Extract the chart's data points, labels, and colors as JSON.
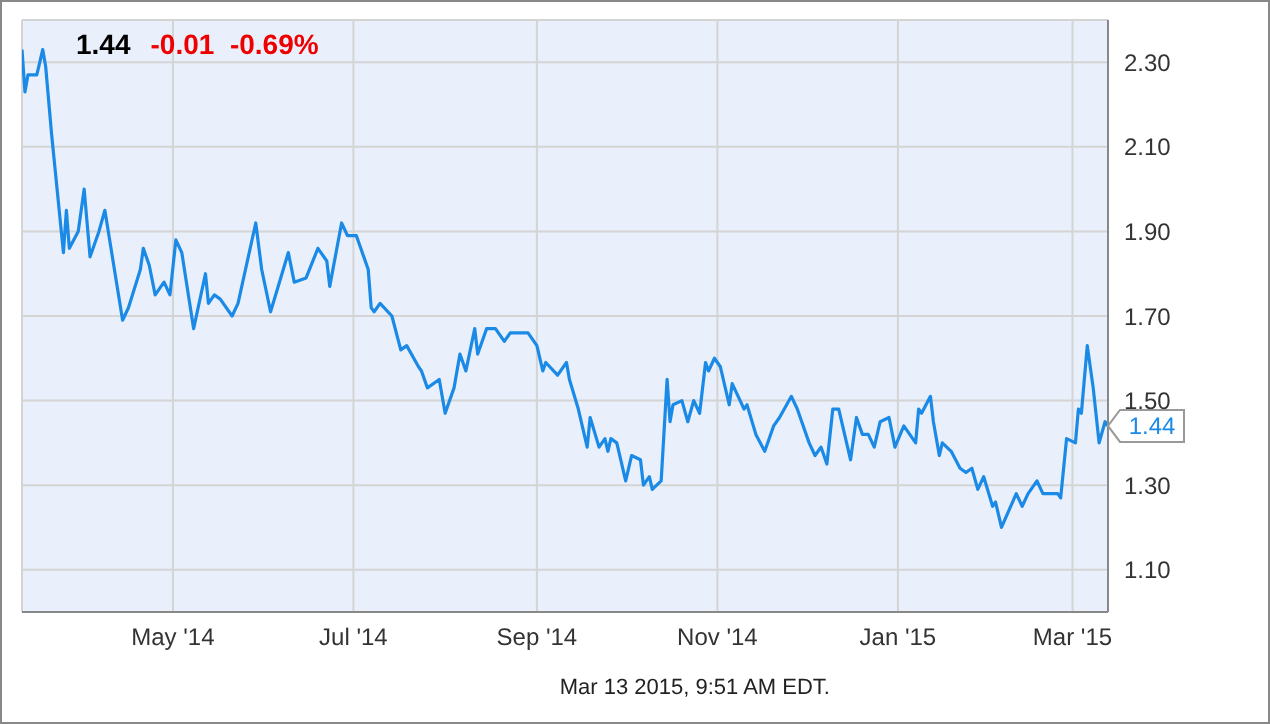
{
  "chart_data": {
    "type": "line",
    "title": "1.44",
    "subtitle": "-0.01  -0.69%",
    "x": [
      "2014-03-11",
      "2014-03-12",
      "2014-03-13",
      "2014-03-16",
      "2014-03-17",
      "2014-03-18",
      "2014-03-19",
      "2014-03-21",
      "2014-03-25",
      "2014-03-26",
      "2014-03-27",
      "2014-03-30",
      "2014-04-01",
      "2014-04-03",
      "2014-04-06",
      "2014-04-08",
      "2014-04-14",
      "2014-04-16",
      "2014-04-20",
      "2014-04-21",
      "2014-04-23",
      "2014-04-25",
      "2014-04-28",
      "2014-04-30",
      "2014-05-02",
      "2014-05-04",
      "2014-05-08",
      "2014-05-12",
      "2014-05-13",
      "2014-05-15",
      "2014-05-17",
      "2014-05-21",
      "2014-05-23",
      "2014-05-29",
      "2014-05-31",
      "2014-06-03",
      "2014-06-06",
      "2014-06-09",
      "2014-06-11",
      "2014-06-15",
      "2014-06-19",
      "2014-06-22",
      "2014-06-23",
      "2014-06-27",
      "2014-06-29",
      "2014-07-02",
      "2014-07-06",
      "2014-07-07",
      "2014-07-08",
      "2014-07-10",
      "2014-07-14",
      "2014-07-17",
      "2014-07-19",
      "2014-07-23",
      "2014-07-24",
      "2014-07-26",
      "2014-07-30",
      "2014-08-01",
      "2014-08-04",
      "2014-08-06",
      "2014-08-08",
      "2014-08-11",
      "2014-08-12",
      "2014-08-15",
      "2014-08-18",
      "2014-08-21",
      "2014-08-23",
      "2014-08-29",
      "2014-09-01",
      "2014-09-03",
      "2014-09-04",
      "2014-09-08",
      "2014-09-11",
      "2014-09-12",
      "2014-09-15",
      "2014-09-18",
      "2014-09-19",
      "2014-09-22",
      "2014-09-24",
      "2014-09-25",
      "2014-09-26",
      "2014-09-28",
      "2014-10-01",
      "2014-10-03",
      "2014-10-06",
      "2014-10-07",
      "2014-10-09",
      "2014-10-10",
      "2014-10-13",
      "2014-10-15",
      "2014-10-16",
      "2014-10-17",
      "2014-10-20",
      "2014-10-22",
      "2014-10-24",
      "2014-10-26",
      "2014-10-28",
      "2014-10-29",
      "2014-10-31",
      "2014-11-02",
      "2014-11-05",
      "2014-11-06",
      "2014-11-10",
      "2014-11-11",
      "2014-11-14",
      "2014-11-17",
      "2014-11-20",
      "2014-11-22",
      "2014-11-26",
      "2014-11-28",
      "2014-12-02",
      "2014-12-04",
      "2014-12-06",
      "2014-12-08",
      "2014-12-10",
      "2014-12-12",
      "2014-12-16",
      "2014-12-18",
      "2014-12-20",
      "2014-12-22",
      "2014-12-24",
      "2014-12-26",
      "2014-12-29",
      "2014-12-31",
      "2015-01-03",
      "2015-01-07",
      "2015-01-08",
      "2015-01-09",
      "2015-01-12",
      "2015-01-13",
      "2015-01-15",
      "2015-01-16",
      "2015-01-19",
      "2015-01-22",
      "2015-01-24",
      "2015-01-26",
      "2015-01-28",
      "2015-01-30",
      "2015-02-02",
      "2015-02-03",
      "2015-02-05",
      "2015-02-10",
      "2015-02-12",
      "2015-02-14",
      "2015-02-17",
      "2015-02-19",
      "2015-02-24",
      "2015-02-25",
      "2015-02-27",
      "2015-03-02",
      "2015-03-03",
      "2015-03-04",
      "2015-03-06",
      "2015-03-08",
      "2015-03-10",
      "2015-03-12",
      "2015-03-13"
    ],
    "series": [
      {
        "color": "#1a8ae6",
        "values": [
          2.33,
          2.23,
          2.27,
          2.27,
          2.3,
          2.33,
          2.29,
          2.13,
          1.85,
          1.95,
          1.86,
          1.9,
          2.0,
          1.84,
          1.9,
          1.95,
          1.69,
          1.72,
          1.81,
          1.86,
          1.82,
          1.75,
          1.78,
          1.75,
          1.88,
          1.85,
          1.67,
          1.8,
          1.73,
          1.75,
          1.74,
          1.7,
          1.73,
          1.92,
          1.81,
          1.71,
          1.78,
          1.85,
          1.78,
          1.79,
          1.86,
          1.83,
          1.77,
          1.92,
          1.89,
          1.89,
          1.81,
          1.72,
          1.71,
          1.73,
          1.7,
          1.62,
          1.63,
          1.58,
          1.57,
          1.53,
          1.55,
          1.47,
          1.53,
          1.61,
          1.57,
          1.67,
          1.61,
          1.67,
          1.67,
          1.64,
          1.66,
          1.66,
          1.63,
          1.57,
          1.59,
          1.56,
          1.59,
          1.55,
          1.48,
          1.39,
          1.46,
          1.39,
          1.41,
          1.38,
          1.41,
          1.4,
          1.31,
          1.37,
          1.36,
          1.3,
          1.32,
          1.29,
          1.31,
          1.55,
          1.45,
          1.49,
          1.5,
          1.45,
          1.5,
          1.47,
          1.59,
          1.57,
          1.6,
          1.58,
          1.49,
          1.54,
          1.48,
          1.49,
          1.42,
          1.38,
          1.44,
          1.46,
          1.51,
          1.48,
          1.4,
          1.37,
          1.39,
          1.35,
          1.48,
          1.48,
          1.36,
          1.46,
          1.42,
          1.42,
          1.39,
          1.45,
          1.46,
          1.39,
          1.44,
          1.4,
          1.48,
          1.47,
          1.51,
          1.45,
          1.37,
          1.4,
          1.38,
          1.34,
          1.33,
          1.34,
          1.29,
          1.32,
          1.25,
          1.26,
          1.2,
          1.28,
          1.25,
          1.28,
          1.31,
          1.28,
          1.28,
          1.27,
          1.41,
          1.4,
          1.48,
          1.47,
          1.63,
          1.53,
          1.4,
          1.45,
          1.44
        ]
      }
    ],
    "xlim": [
      "2014-03-11",
      "2015-03-13"
    ],
    "xticks": [
      {
        "value": "2014-05-01",
        "label": "May '14"
      },
      {
        "value": "2014-07-01",
        "label": "Jul '14"
      },
      {
        "value": "2014-09-01",
        "label": "Sep '14"
      },
      {
        "value": "2014-11-01",
        "label": "Nov '14"
      },
      {
        "value": "2015-01-01",
        "label": "Jan '15"
      },
      {
        "value": "2015-03-01",
        "label": "Mar '15"
      }
    ],
    "ylim": [
      1.0,
      2.4
    ],
    "yticks": [
      {
        "value": 1.1,
        "label": "1.10"
      },
      {
        "value": 1.3,
        "label": "1.30"
      },
      {
        "value": 1.5,
        "label": "1.50"
      },
      {
        "value": 1.7,
        "label": "1.70"
      },
      {
        "value": 1.9,
        "label": "1.90"
      },
      {
        "value": 2.1,
        "label": "2.10"
      },
      {
        "value": 2.3,
        "label": "2.30"
      }
    ],
    "grid": true,
    "legend": false,
    "marker": "none",
    "line_style": "solid",
    "annotations": [
      {
        "text": "1.44",
        "x": "2015-03-13",
        "y": 1.44
      },
      "Mar 13 2015, 9:51 AM EDT."
    ]
  }
}
